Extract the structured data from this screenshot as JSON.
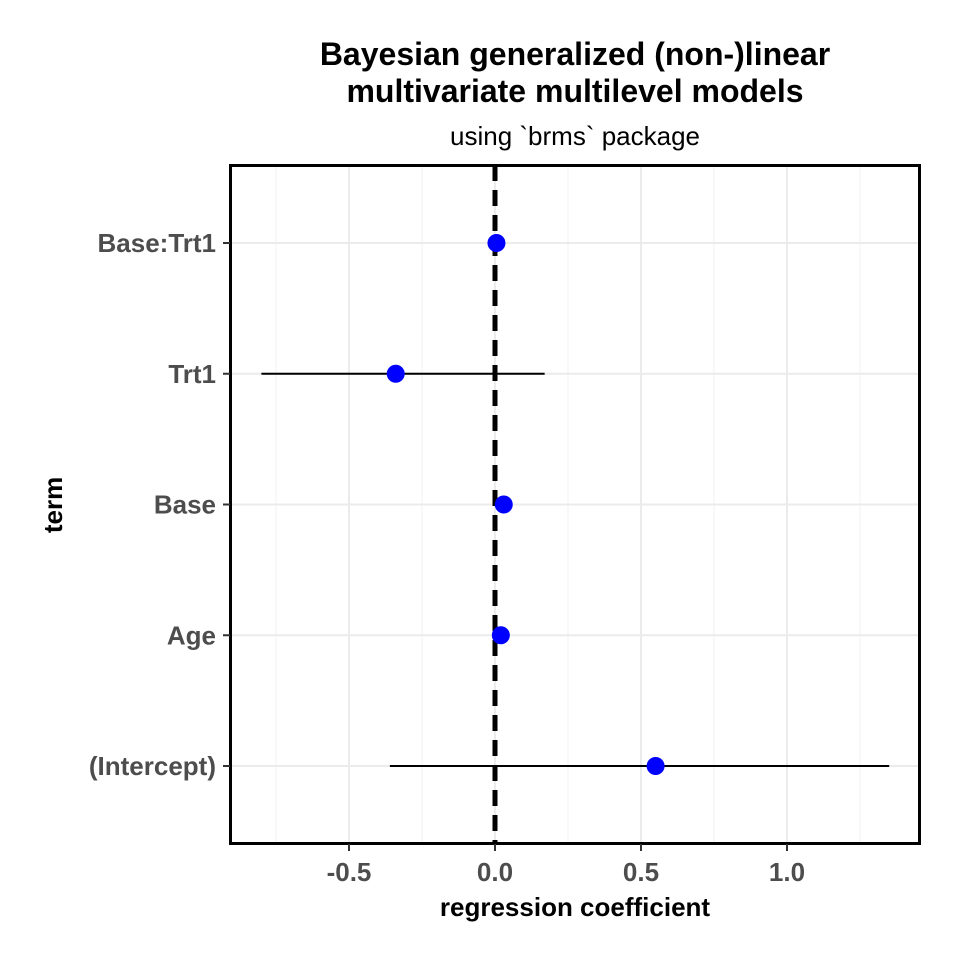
{
  "header": {
    "title_line_1": "Bayesian generalized (non-)linear",
    "title_line_2": "multivariate multilevel models",
    "subtitle": "using `brms` package"
  },
  "chart_data": {
    "type": "scatter",
    "title": "Bayesian generalized (non-)linear multivariate multilevel models",
    "subtitle": "using `brms` package",
    "xlabel": "regression coefficient",
    "ylabel": "term",
    "xlim": [
      -0.9,
      1.45
    ],
    "x_ticks": [
      -0.5,
      0.0,
      0.5,
      1.0
    ],
    "x_tick_labels": [
      "-0.5",
      "0.0",
      "0.5",
      "1.0"
    ],
    "terms": [
      "(Intercept)",
      "Age",
      "Base",
      "Trt1",
      "Base:Trt1"
    ],
    "estimates": [
      0.55,
      0.02,
      0.03,
      -0.34,
      0.005
    ],
    "conf_low": [
      -0.36,
      0.01,
      0.02,
      -0.8,
      0.0
    ],
    "conf_high": [
      1.35,
      0.03,
      0.04,
      0.17,
      0.01
    ],
    "reference_line_x": 0,
    "grid": true,
    "point_color": "#0000ff",
    "reference_line_color": "#000000"
  }
}
